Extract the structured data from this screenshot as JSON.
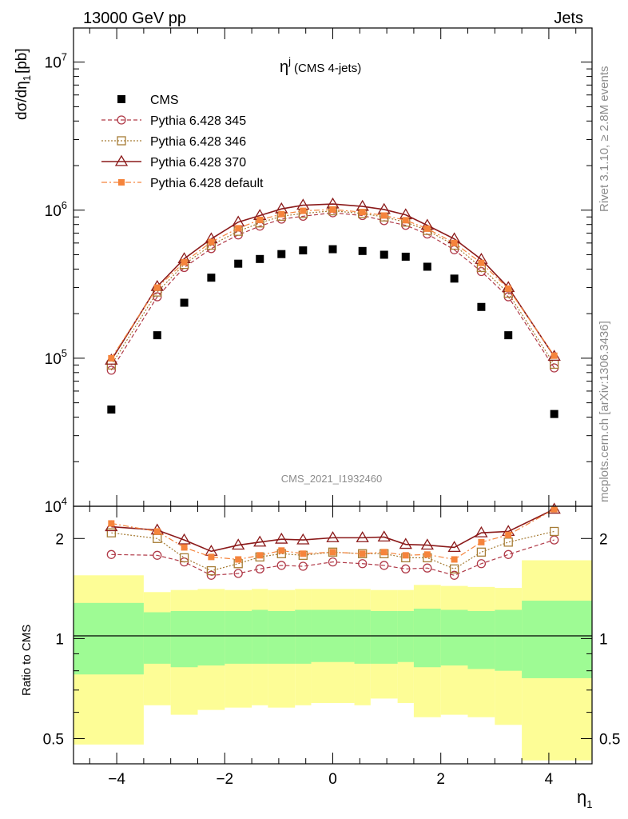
{
  "header": {
    "left": "13000 GeV pp",
    "right": "Jets"
  },
  "side_labels": {
    "top": "Rivet 3.1.10, ≥ 2.8M events",
    "bottom": "mcplots.cern.ch [arXiv:1306.3436]"
  },
  "chart_data": [
    {
      "type": "scatter",
      "panel": "main",
      "title": "η",
      "title_sup": "j",
      "title_note": "(CMS 4-jets)",
      "watermark": "CMS_2021_I1932460",
      "ylabel": "dσ/dη",
      "ylabel_sub": "1",
      "ylabel_unit": "[pb]",
      "yscale": "log",
      "xlim": [
        -4.8,
        4.8
      ],
      "ylim": [
        10000,
        17000000
      ],
      "yticks": [
        {
          "value": 10000,
          "base": "10",
          "exp": "4"
        },
        {
          "value": 100000,
          "base": "10",
          "exp": "5"
        },
        {
          "value": 1000000,
          "base": "10",
          "exp": "6"
        },
        {
          "value": 10000000,
          "base": "10",
          "exp": "7"
        }
      ],
      "x": [
        -4.1,
        -3.25,
        -2.75,
        -2.25,
        -1.75,
        -1.35,
        -0.95,
        -0.55,
        0.0,
        0.55,
        0.95,
        1.35,
        1.75,
        2.25,
        2.75,
        3.25,
        4.1
      ],
      "series": [
        {
          "name": "CMS",
          "marker": "filled-square",
          "color": "#000000",
          "values": [
            45000,
            143000,
            237000,
            350000,
            435000,
            468000,
            505000,
            535000,
            545000,
            530000,
            500000,
            485000,
            415000,
            345000,
            222000,
            143000,
            42000
          ]
        },
        {
          "name": "Pythia 6.428 345",
          "marker": "open-circle",
          "line": "dashed",
          "color": "#b03a48",
          "values": [
            83000,
            260000,
            410000,
            550000,
            680000,
            780000,
            870000,
            910000,
            960000,
            920000,
            850000,
            790000,
            690000,
            540000,
            385000,
            260000,
            86000
          ]
        },
        {
          "name": "Pythia 6.428 346",
          "marker": "open-square",
          "line": "dotted",
          "color": "#a67c35",
          "values": [
            90000,
            280000,
            430000,
            580000,
            720000,
            820000,
            910000,
            950000,
            990000,
            950000,
            900000,
            830000,
            730000,
            580000,
            410000,
            275000,
            91000
          ]
        },
        {
          "name": "Pythia 6.428 370",
          "marker": "open-triangle",
          "line": "solid",
          "color": "#8b1a1a",
          "values": [
            97000,
            305000,
            470000,
            640000,
            830000,
            920000,
            1020000,
            1080000,
            1100000,
            1060000,
            1010000,
            930000,
            790000,
            640000,
            465000,
            300000,
            103000
          ]
        },
        {
          "name": "Pythia 6.428 default",
          "marker": "filled-square-small",
          "line": "dashdot",
          "color": "#f5843c",
          "values": [
            100000,
            300000,
            445000,
            610000,
            755000,
            860000,
            940000,
            990000,
            1010000,
            970000,
            920000,
            855000,
            750000,
            600000,
            440000,
            295000,
            104000
          ]
        }
      ]
    },
    {
      "type": "line",
      "panel": "ratio",
      "ylabel": "Ratio to CMS",
      "xlabel": "η",
      "xlabel_sub": "1",
      "yscale": "log",
      "ylim": [
        0.42,
        2.5
      ],
      "yticks": [
        0.5,
        1,
        2
      ],
      "xticks": [
        -4,
        -2,
        0,
        2,
        4
      ],
      "bins": [
        -4.8,
        -3.5,
        -3.0,
        -2.5,
        -2.0,
        -1.5,
        -1.2,
        -0.7,
        -0.4,
        0.4,
        0.7,
        1.2,
        1.5,
        2.0,
        2.5,
        3.0,
        3.5,
        4.8
      ],
      "band_inner": {
        "color": "#9efb94",
        "lower": [
          0.78,
          0.84,
          0.82,
          0.83,
          0.84,
          0.84,
          0.84,
          0.84,
          0.85,
          0.84,
          0.84,
          0.85,
          0.82,
          0.83,
          0.81,
          0.8,
          0.76
        ],
        "upper": [
          1.28,
          1.2,
          1.21,
          1.21,
          1.21,
          1.22,
          1.21,
          1.22,
          1.22,
          1.22,
          1.21,
          1.21,
          1.23,
          1.22,
          1.21,
          1.22,
          1.3
        ]
      },
      "band_outer": {
        "color": "#fdfd96",
        "lower": [
          0.48,
          0.63,
          0.59,
          0.61,
          0.62,
          0.63,
          0.62,
          0.63,
          0.64,
          0.63,
          0.66,
          0.64,
          0.58,
          0.59,
          0.58,
          0.55,
          0.43
        ],
        "upper": [
          1.55,
          1.38,
          1.4,
          1.41,
          1.4,
          1.41,
          1.4,
          1.41,
          1.41,
          1.41,
          1.4,
          1.4,
          1.45,
          1.44,
          1.43,
          1.42,
          1.72
        ]
      },
      "x": [
        -4.1,
        -3.25,
        -2.75,
        -2.25,
        -1.75,
        -1.35,
        -0.95,
        -0.55,
        0.0,
        0.55,
        0.95,
        1.35,
        1.75,
        2.25,
        2.75,
        3.25,
        4.1
      ],
      "series": [
        {
          "name": "Pythia 6.428 345",
          "color": "#b03a48",
          "marker": "open-circle",
          "line": "dashed",
          "values": [
            1.79,
            1.78,
            1.7,
            1.55,
            1.57,
            1.62,
            1.66,
            1.65,
            1.7,
            1.68,
            1.66,
            1.62,
            1.63,
            1.55,
            1.68,
            1.79,
            1.98
          ]
        },
        {
          "name": "Pythia 6.428 346",
          "color": "#a67c35",
          "marker": "open-square",
          "line": "dotted",
          "values": [
            2.08,
            2.0,
            1.75,
            1.6,
            1.68,
            1.76,
            1.8,
            1.78,
            1.82,
            1.8,
            1.8,
            1.75,
            1.75,
            1.62,
            1.82,
            1.95,
            2.1
          ]
        },
        {
          "name": "Pythia 6.428 370",
          "color": "#8b1a1a",
          "marker": "open-triangle",
          "line": "solid",
          "values": [
            2.17,
            2.12,
            1.98,
            1.83,
            1.91,
            1.95,
            1.99,
            1.98,
            2.01,
            2.01,
            2.02,
            1.92,
            1.91,
            1.88,
            2.08,
            2.1,
            2.45
          ]
        },
        {
          "name": "Pythia 6.428 default",
          "color": "#f5843c",
          "marker": "filled-square-small",
          "line": "dashdot",
          "values": [
            2.22,
            2.1,
            1.88,
            1.76,
            1.73,
            1.78,
            1.84,
            1.8,
            1.82,
            1.8,
            1.82,
            1.78,
            1.79,
            1.73,
            1.95,
            2.05,
            2.45
          ]
        }
      ]
    }
  ]
}
